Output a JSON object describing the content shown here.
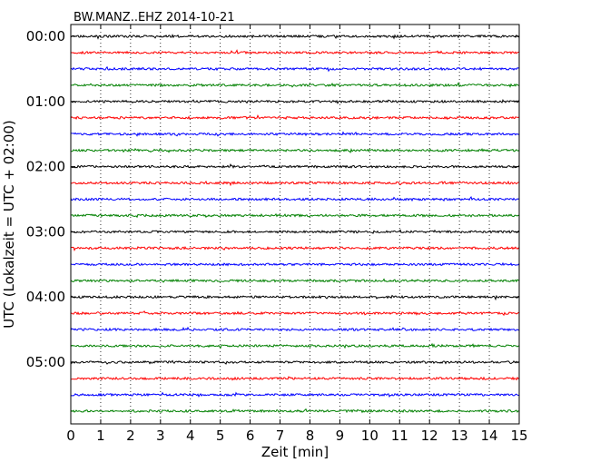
{
  "chart_data": {
    "type": "line",
    "title": "BW.MANZ..EHZ 2014-10-21",
    "xlabel": "Zeit  [min]",
    "ylabel": "UTC (Lokalzeit = UTC + 02:00)",
    "xlim": [
      0,
      15
    ],
    "xticks": [
      "0",
      "1",
      "2",
      "3",
      "4",
      "5",
      "6",
      "7",
      "8",
      "9",
      "10",
      "11",
      "12",
      "13",
      "14",
      "15"
    ],
    "yticks": [
      "00:00",
      "01:00",
      "02:00",
      "03:00",
      "04:00",
      "05:00"
    ],
    "grid": "vertical dotted",
    "trace_interval_min": 15,
    "trace_count": 24,
    "trace_colors": [
      "#000000",
      "#ff0000",
      "#0000ff",
      "#008000"
    ]
  }
}
